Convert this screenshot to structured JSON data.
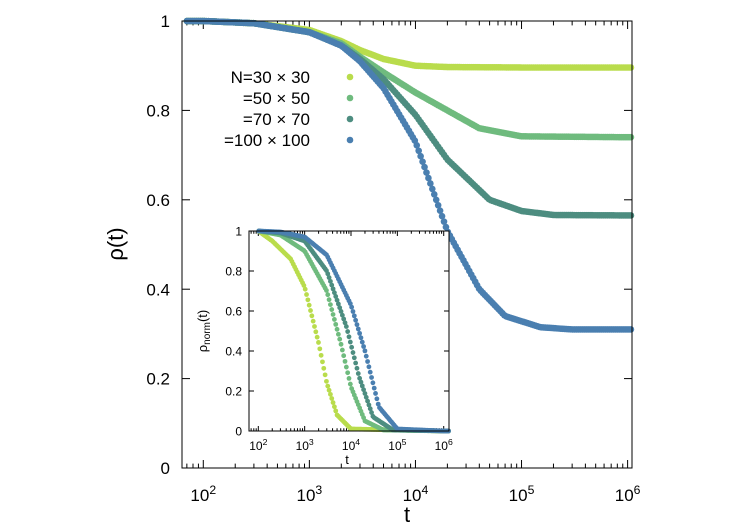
{
  "chart_data": [
    {
      "type": "scatter",
      "panel": "main",
      "xscale": "log",
      "xlim": [
        63,
        1100000
      ],
      "ylim": [
        0,
        1
      ],
      "xlabel": "t",
      "ylabel": "ρ(t)",
      "x_tick_labels": [
        "10^2",
        "10^3",
        "10^4",
        "10^5",
        "10^6"
      ],
      "y_tick_labels": [
        "0",
        "0.2",
        "0.4",
        "0.6",
        "0.8",
        "1"
      ],
      "legend_position": "top-right",
      "series": [
        {
          "name": "N=30 × 30",
          "color": "#b9dc4c",
          "values": [
            [
              70,
              1
            ],
            [
              100,
              1
            ],
            [
              300,
              0.995
            ],
            [
              1000,
              0.98
            ],
            [
              2000,
              0.955
            ],
            [
              3000,
              0.935
            ],
            [
              5000,
              0.915
            ],
            [
              10000,
              0.9
            ],
            [
              20000,
              0.897
            ],
            [
              100000,
              0.896
            ],
            [
              1000000,
              0.896
            ]
          ]
        },
        {
          "name": "=50 × 50",
          "color": "#6fbb7e",
          "values": [
            [
              70,
              1
            ],
            [
              100,
              1
            ],
            [
              300,
              0.995
            ],
            [
              1000,
              0.975
            ],
            [
              2000,
              0.95
            ],
            [
              3000,
              0.92
            ],
            [
              5000,
              0.885
            ],
            [
              10000,
              0.84
            ],
            [
              20000,
              0.8
            ],
            [
              40000,
              0.76
            ],
            [
              100000,
              0.742
            ],
            [
              1000000,
              0.74
            ]
          ]
        },
        {
          "name": "=70 × 70",
          "color": "#4d8d80",
          "values": [
            [
              70,
              1
            ],
            [
              100,
              1
            ],
            [
              300,
              0.995
            ],
            [
              1000,
              0.975
            ],
            [
              2000,
              0.945
            ],
            [
              3000,
              0.915
            ],
            [
              5000,
              0.87
            ],
            [
              10000,
              0.79
            ],
            [
              20000,
              0.69
            ],
            [
              50000,
              0.6
            ],
            [
              100000,
              0.575
            ],
            [
              200000,
              0.566
            ],
            [
              1000000,
              0.565
            ]
          ]
        },
        {
          "name": "=100 × 100",
          "color": "#4a7fb0",
          "values": [
            [
              70,
              1
            ],
            [
              100,
              1
            ],
            [
              300,
              0.995
            ],
            [
              1000,
              0.975
            ],
            [
              2000,
              0.945
            ],
            [
              3000,
              0.91
            ],
            [
              5000,
              0.85
            ],
            [
              10000,
              0.73
            ],
            [
              20000,
              0.53
            ],
            [
              40000,
              0.4
            ],
            [
              70000,
              0.34
            ],
            [
              150000,
              0.315
            ],
            [
              300000,
              0.31
            ],
            [
              1000000,
              0.31
            ]
          ]
        }
      ]
    },
    {
      "type": "scatter",
      "panel": "inset",
      "xscale": "log",
      "xlim": [
        63,
        1300000
      ],
      "ylim": [
        0,
        1
      ],
      "xlabel": "t",
      "ylabel": "ρ_norm(t)",
      "ylabel_main": "ρ",
      "ylabel_sub": "norm",
      "ylabel_tail": "(t)",
      "x_tick_labels": [
        "10^2",
        "10^3",
        "10^4",
        "10^5",
        "10^6"
      ],
      "y_tick_labels": [
        "0",
        "0.2",
        "0.4",
        "0.6",
        "0.8",
        "1"
      ],
      "series": [
        {
          "name": "N=30 × 30",
          "color": "#b9dc4c",
          "values": [
            [
              100,
              1
            ],
            [
              200,
              0.95
            ],
            [
              500,
              0.86
            ],
            [
              1000,
              0.72
            ],
            [
              2000,
              0.44
            ],
            [
              3000,
              0.24
            ],
            [
              5000,
              0.08
            ],
            [
              10000,
              0.01
            ],
            [
              1000000,
              0
            ]
          ]
        },
        {
          "name": "=50 × 50",
          "color": "#6fbb7e",
          "values": [
            [
              100,
              1
            ],
            [
              300,
              0.98
            ],
            [
              1000,
              0.9
            ],
            [
              3000,
              0.7
            ],
            [
              6000,
              0.44
            ],
            [
              10000,
              0.22
            ],
            [
              20000,
              0.05
            ],
            [
              50000,
              0.005
            ],
            [
              1000000,
              0
            ]
          ]
        },
        {
          "name": "=70 × 70",
          "color": "#4d8d80",
          "values": [
            [
              100,
              1
            ],
            [
              300,
              0.99
            ],
            [
              1000,
              0.95
            ],
            [
              3000,
              0.8
            ],
            [
              8000,
              0.52
            ],
            [
              15000,
              0.27
            ],
            [
              30000,
              0.07
            ],
            [
              80000,
              0.005
            ],
            [
              1000000,
              0
            ]
          ]
        },
        {
          "name": "=100 × 100",
          "color": "#4a7fb0",
          "values": [
            [
              100,
              1
            ],
            [
              300,
              0.995
            ],
            [
              1000,
              0.97
            ],
            [
              3000,
              0.88
            ],
            [
              10000,
              0.63
            ],
            [
              20000,
              0.4
            ],
            [
              40000,
              0.12
            ],
            [
              100000,
              0.01
            ],
            [
              1000000,
              0
            ]
          ]
        }
      ]
    }
  ]
}
